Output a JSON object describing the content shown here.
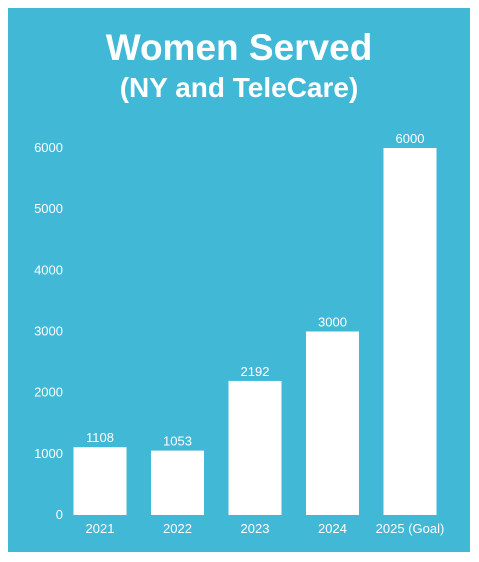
{
  "chart_data": {
    "type": "bar",
    "title": "Women Served",
    "subtitle": "(NY and TeleCare)",
    "categories": [
      "2021",
      "2022",
      "2023",
      "2024",
      "2025 (Goal)"
    ],
    "values": [
      1108,
      1053,
      2192,
      3000,
      6000
    ],
    "ylim": [
      0,
      6000
    ],
    "yticks": [
      0,
      1000,
      2000,
      3000,
      4000,
      5000,
      6000
    ],
    "grid": false,
    "legend": "none"
  },
  "colors": {
    "background": "#42b8d7",
    "bar": "#ffffff",
    "text": "#ffffff"
  }
}
